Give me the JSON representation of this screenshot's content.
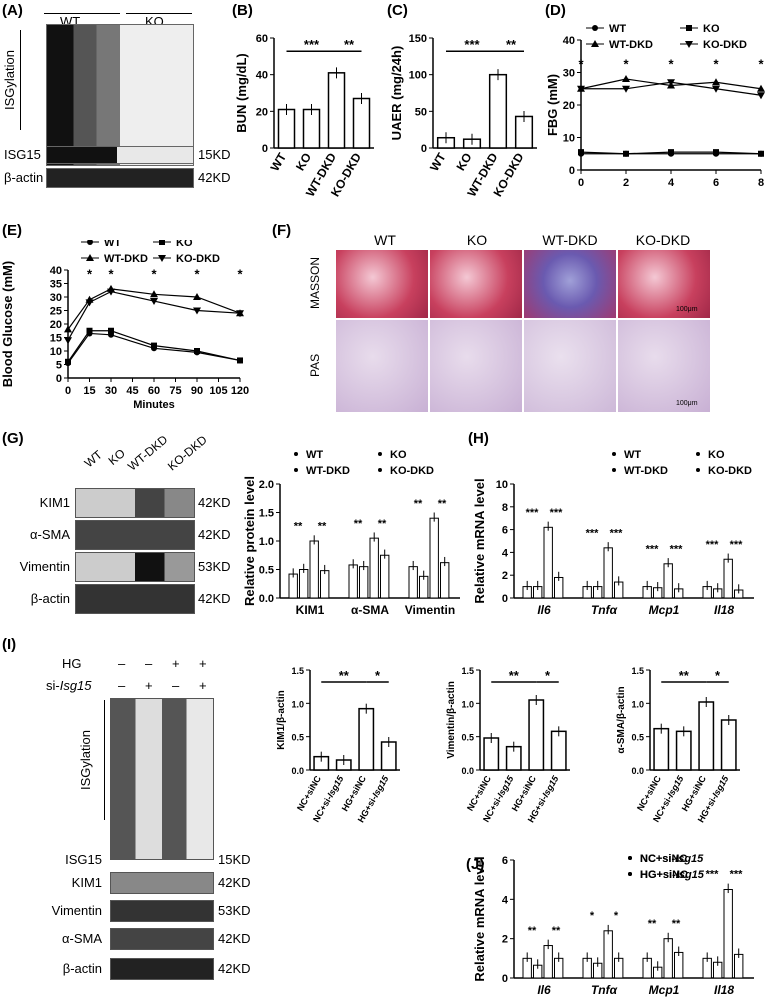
{
  "panels": {
    "A": "(A)",
    "B": "(B)",
    "C": "(C)",
    "D": "(D)",
    "E": "(E)",
    "F": "(F)",
    "G": "(G)",
    "H": "(H)",
    "I": "(I)",
    "J": "(J)"
  },
  "A": {
    "groups": [
      "WT",
      "KO"
    ],
    "side": "ISGylation",
    "rows": [
      "ISG15",
      "β-actin"
    ],
    "kd": [
      "15KD",
      "42KD"
    ]
  },
  "B": {
    "ylabel": "BUN (mg/dL)",
    "yticks": [
      "0",
      "20",
      "40",
      "60"
    ],
    "cats": [
      "WT",
      "KO",
      "WT-DKD",
      "KO-DKD"
    ],
    "values": [
      21,
      21,
      41,
      27
    ],
    "ymax": 60,
    "sig": [
      "***",
      "**"
    ]
  },
  "C": {
    "ylabel": "UAER (mg/24h)",
    "yticks": [
      "0",
      "50",
      "100",
      "150"
    ],
    "cats": [
      "WT",
      "KO",
      "WT-DKD",
      "KO-DKD"
    ],
    "values": [
      14,
      12,
      100,
      43
    ],
    "ymax": 150,
    "sig": [
      "***",
      "**"
    ]
  },
  "D": {
    "ylabel": "FBG (mM)",
    "yticks": [
      "0",
      "10",
      "20",
      "30",
      "40"
    ],
    "xticks": [
      "0",
      "2",
      "4",
      "6",
      "8"
    ],
    "legend": [
      "WT",
      "KO",
      "WT-DKD",
      "KO-DKD"
    ],
    "star": "*",
    "series": [
      {
        "name": "WT",
        "values": [
          5,
          5,
          5,
          5,
          5
        ]
      },
      {
        "name": "KO",
        "values": [
          5.5,
          5,
          5.5,
          5.5,
          5
        ]
      },
      {
        "name": "WT-DKD",
        "values": [
          25,
          28,
          26,
          27,
          25
        ]
      },
      {
        "name": "KO-DKD",
        "values": [
          25,
          25,
          27,
          25,
          23
        ]
      }
    ]
  },
  "E": {
    "ylabel": "Blood Glucose (mM)",
    "xlabel": "Minutes",
    "yticks": [
      "0",
      "5",
      "10",
      "15",
      "20",
      "25",
      "30",
      "35",
      "40"
    ],
    "xticks": [
      "0",
      "15",
      "30",
      "45",
      "60",
      "75",
      "90",
      "105",
      "120"
    ],
    "legend": [
      "WT",
      "KO",
      "WT-DKD",
      "KO-DKD"
    ],
    "star": "*",
    "x": [
      0,
      15,
      30,
      60,
      90,
      120
    ],
    "series": [
      {
        "name": "WT",
        "values": [
          5.5,
          16.5,
          16,
          11,
          9.5,
          6.5
        ]
      },
      {
        "name": "KO",
        "values": [
          6,
          17.5,
          17.5,
          12,
          10,
          6.5
        ]
      },
      {
        "name": "WT-DKD",
        "values": [
          18,
          29,
          33,
          31,
          30,
          24
        ]
      },
      {
        "name": "KO-DKD",
        "values": [
          14,
          28,
          32,
          28.5,
          25,
          24
        ]
      }
    ]
  },
  "F": {
    "cols": [
      "WT",
      "KO",
      "WT-DKD",
      "KO-DKD"
    ],
    "rows": [
      "MASSON",
      "PAS"
    ],
    "scale": "100μm"
  },
  "G": {
    "cols": [
      "WT",
      "KO",
      "WT-DKD",
      "KO-DKD"
    ],
    "rows": [
      "KIM1",
      "α-SMA",
      "Vimentin",
      "β-actin"
    ],
    "kd": [
      "42KD",
      "42KD",
      "53KD",
      "42KD"
    ],
    "chart": {
      "ylabel": "Relative protein level",
      "yticks": [
        "0.0",
        "0.5",
        "1.0",
        "1.5",
        "2.0"
      ],
      "cats": [
        "KIM1",
        "α-SMA",
        "Vimentin"
      ],
      "legend": [
        "WT",
        "KO",
        "WT-DKD",
        "KO-DKD"
      ],
      "sig": "**",
      "series": [
        {
          "name": "WT",
          "values": [
            0.42,
            0.58,
            0.55
          ]
        },
        {
          "name": "KO",
          "values": [
            0.5,
            0.55,
            0.38
          ]
        },
        {
          "name": "WT-DKD",
          "values": [
            1.0,
            1.05,
            1.4
          ]
        },
        {
          "name": "KO-DKD",
          "values": [
            0.48,
            0.75,
            0.62
          ]
        }
      ]
    }
  },
  "H": {
    "ylabel": "Relative mRNA level",
    "yticks": [
      "0",
      "2",
      "4",
      "6",
      "8",
      "10"
    ],
    "cats": [
      "Il6",
      "Tnfα",
      "Mcp1",
      "Il18"
    ],
    "legend": [
      "WT",
      "KO",
      "WT-DKD",
      "KO-DKD"
    ],
    "sig": "***",
    "series": [
      {
        "name": "WT",
        "values": [
          1,
          1,
          1,
          1
        ]
      },
      {
        "name": "KO",
        "values": [
          1,
          1,
          0.9,
          0.8
        ]
      },
      {
        "name": "WT-DKD",
        "values": [
          6.2,
          4.4,
          3,
          3.4
        ]
      },
      {
        "name": "KO-DKD",
        "values": [
          1.8,
          1.4,
          0.8,
          0.7
        ]
      }
    ]
  },
  "I": {
    "hg": "HG",
    "si": "si-",
    "si_gene": "Isg15",
    "signs": [
      [
        "–",
        "–",
        "+",
        "+"
      ],
      [
        "–",
        "+",
        "–",
        "+"
      ]
    ],
    "side": "ISGylation",
    "rows": [
      "ISG15",
      "KIM1",
      "Vimentin",
      "α-SMA",
      "β-actin"
    ],
    "kd": [
      "15KD",
      "42KD",
      "53KD",
      "42KD",
      "42KD"
    ],
    "cats": [
      "NC+siNC",
      "NC+si-",
      "HG+siNC",
      "HG+si-"
    ],
    "gene": "Isg15",
    "charts": [
      {
        "ylabel": "KIM1/β-actin",
        "values": [
          0.2,
          0.15,
          0.92,
          0.42
        ],
        "sig": [
          "**",
          "*"
        ]
      },
      {
        "ylabel": "Vimentin/β-actin",
        "values": [
          0.48,
          0.35,
          1.05,
          0.58
        ],
        "sig": [
          "**",
          "*"
        ]
      },
      {
        "ylabel": "α-SMA/β-actin",
        "values": [
          0.62,
          0.58,
          1.02,
          0.75
        ],
        "sig": [
          "**",
          "*"
        ]
      }
    ],
    "yticks": [
      "0.0",
      "0.5",
      "1.0",
      "1.5"
    ]
  },
  "J": {
    "ylabel": "Relative mRNA level",
    "yticks": [
      "0",
      "2",
      "4",
      "6"
    ],
    "cats": [
      "Il6",
      "Tnfα",
      "Mcp1",
      "Il18"
    ],
    "legend": [
      "NC+siNC",
      "NC+si-",
      "HG+siNC",
      "HG+si-"
    ],
    "gene": "Isg15",
    "series": [
      {
        "name": "NC+siNC",
        "values": [
          1,
          1,
          1,
          1
        ]
      },
      {
        "name": "NC+si-",
        "values": [
          0.65,
          0.75,
          0.55,
          0.8
        ]
      },
      {
        "name": "HG+siNC",
        "values": [
          1.65,
          2.4,
          2,
          4.5
        ]
      },
      {
        "name": "HG+si-",
        "values": [
          1,
          1,
          1.3,
          1.2
        ]
      }
    ],
    "sigs": [
      [
        "**",
        "**"
      ],
      [
        "*",
        "*"
      ],
      [
        "**",
        "**"
      ],
      [
        "***",
        "***"
      ]
    ]
  }
}
